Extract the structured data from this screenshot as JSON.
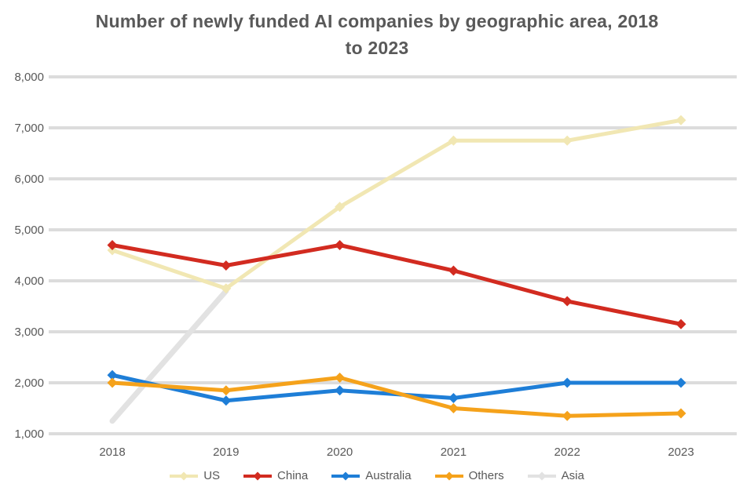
{
  "title": {
    "line1": "Number of newly funded AI companies by geographic area, 2018",
    "line2": "to 2023"
  },
  "chart_data": {
    "type": "line",
    "title": "Number of newly funded AI companies by geographic area, 2018 to 2023",
    "categories": [
      "2018",
      "2019",
      "2020",
      "2021",
      "2022",
      "2023"
    ],
    "series": [
      {
        "name": "US",
        "color": "#F1E7B3",
        "values": [
          4600,
          3850,
          5450,
          6750,
          6750,
          7150
        ],
        "markers": true,
        "width": 5
      },
      {
        "name": "China",
        "color": "#D22B20",
        "values": [
          4700,
          4300,
          4700,
          4200,
          3600,
          3150
        ],
        "markers": true,
        "width": 5
      },
      {
        "name": "Australia",
        "color": "#1E7ED7",
        "values": [
          2150,
          1650,
          1850,
          1700,
          2000,
          2000
        ],
        "markers": true,
        "width": 5
      },
      {
        "name": "Others",
        "color": "#F5A21B",
        "values": [
          2000,
          1850,
          2100,
          1500,
          1350,
          1400
        ],
        "markers": true,
        "width": 5
      },
      {
        "name": "Asia",
        "color": "#E2E2E2",
        "values": [
          1250,
          3800,
          null,
          null,
          null,
          null
        ],
        "markers": false,
        "width": 7
      }
    ],
    "y_ticks": [
      {
        "value": 8000,
        "label": "8,000"
      },
      {
        "value": 7000,
        "label": "7,000"
      },
      {
        "value": 6000,
        "label": "6,000"
      },
      {
        "value": 5000,
        "label": "5,000"
      },
      {
        "value": 4000,
        "label": "4,000"
      },
      {
        "value": 3000,
        "label": "3,000"
      },
      {
        "value": 2000,
        "label": "2,000"
      },
      {
        "value": 1000,
        "label": "1,000"
      }
    ],
    "ylim": [
      1000,
      8000
    ],
    "grid": "horizontal",
    "legend_position": "bottom",
    "colors": {
      "gridline": "#DCDCDC",
      "axis_text": "#595959",
      "title_text": "#595959"
    }
  }
}
